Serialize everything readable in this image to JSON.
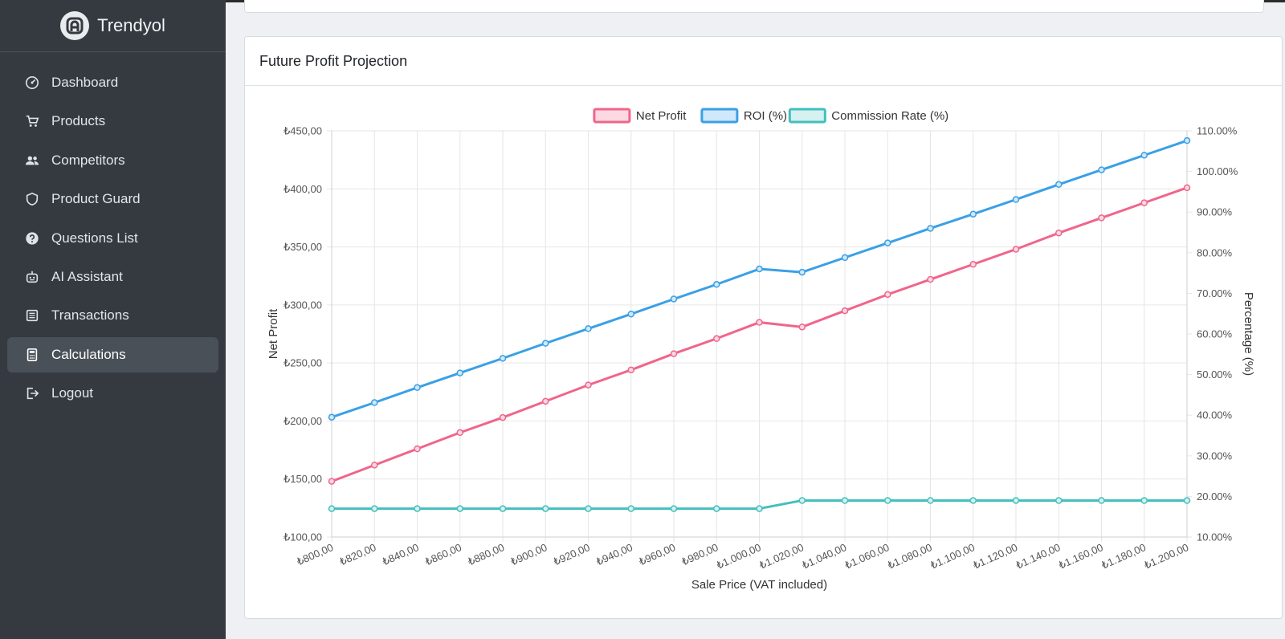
{
  "app": {
    "name": "Trendyol"
  },
  "sidebar": {
    "items": [
      {
        "label": "Dashboard",
        "icon": "dashboard-icon",
        "active": false
      },
      {
        "label": "Products",
        "icon": "cart-icon",
        "active": false
      },
      {
        "label": "Competitors",
        "icon": "users-icon",
        "active": false
      },
      {
        "label": "Product Guard",
        "icon": "shield-icon",
        "active": false
      },
      {
        "label": "Questions List",
        "icon": "question-icon",
        "active": false
      },
      {
        "label": "AI Assistant",
        "icon": "robot-icon",
        "active": false
      },
      {
        "label": "Transactions",
        "icon": "list-icon",
        "active": false
      },
      {
        "label": "Calculations",
        "icon": "calculator-icon",
        "active": true
      },
      {
        "label": "Logout",
        "icon": "logout-icon",
        "active": false
      }
    ]
  },
  "card": {
    "title": "Future Profit Projection"
  },
  "chart_data": {
    "type": "line",
    "categories": [
      "₺800,00",
      "₺820,00",
      "₺840,00",
      "₺860,00",
      "₺880,00",
      "₺900,00",
      "₺920,00",
      "₺940,00",
      "₺960,00",
      "₺980,00",
      "₺1.000,00",
      "₺1.020,00",
      "₺1.040,00",
      "₺1.060,00",
      "₺1.080,00",
      "₺1.100,00",
      "₺1.120,00",
      "₺1.140,00",
      "₺1.160,00",
      "₺1.180,00",
      "₺1.200,00"
    ],
    "xlabel": "Sale Price (VAT included)",
    "ylabel": "Net Profit",
    "y2label": "Percentage (%)",
    "ylim": [
      100,
      450
    ],
    "y2lim": [
      10,
      110
    ],
    "yticks": [
      "₺450,00",
      "₺400,00",
      "₺350,00",
      "₺300,00",
      "₺250,00",
      "₺200,00",
      "₺150,00",
      "₺100,00"
    ],
    "y2ticks": [
      "110.00%",
      "100.00%",
      "90.00%",
      "80.00%",
      "70.00%",
      "60.00%",
      "50.00%",
      "40.00%",
      "30.00%",
      "20.00%",
      "10.00%"
    ],
    "legend_position": "top-center",
    "grid": true,
    "series": [
      {
        "name": "Net Profit",
        "axis": "left",
        "color": "#f0658a",
        "fill": "#fcd9e2",
        "values": [
          148,
          162,
          176,
          190,
          203,
          217,
          231,
          244,
          258,
          271,
          285,
          281,
          295,
          309,
          322,
          335,
          348,
          362,
          375,
          388,
          401
        ]
      },
      {
        "name": "ROI (%)",
        "axis": "right",
        "color": "#3aa0e6",
        "fill": "#cfe8fa",
        "values": [
          39.5,
          43.1,
          46.8,
          50.4,
          54.0,
          57.7,
          61.3,
          64.9,
          68.6,
          72.2,
          76.0,
          75.2,
          78.8,
          82.4,
          86.0,
          89.5,
          93.1,
          96.8,
          100.4,
          104.0,
          107.6
        ]
      },
      {
        "name": "Commission Rate (%)",
        "axis": "right",
        "color": "#43bfbd",
        "fill": "#d5f1f0",
        "values": [
          17,
          17,
          17,
          17,
          17,
          17,
          17,
          17,
          17,
          17,
          17,
          19,
          19,
          19,
          19,
          19,
          19,
          19,
          19,
          19,
          19
        ]
      }
    ]
  }
}
